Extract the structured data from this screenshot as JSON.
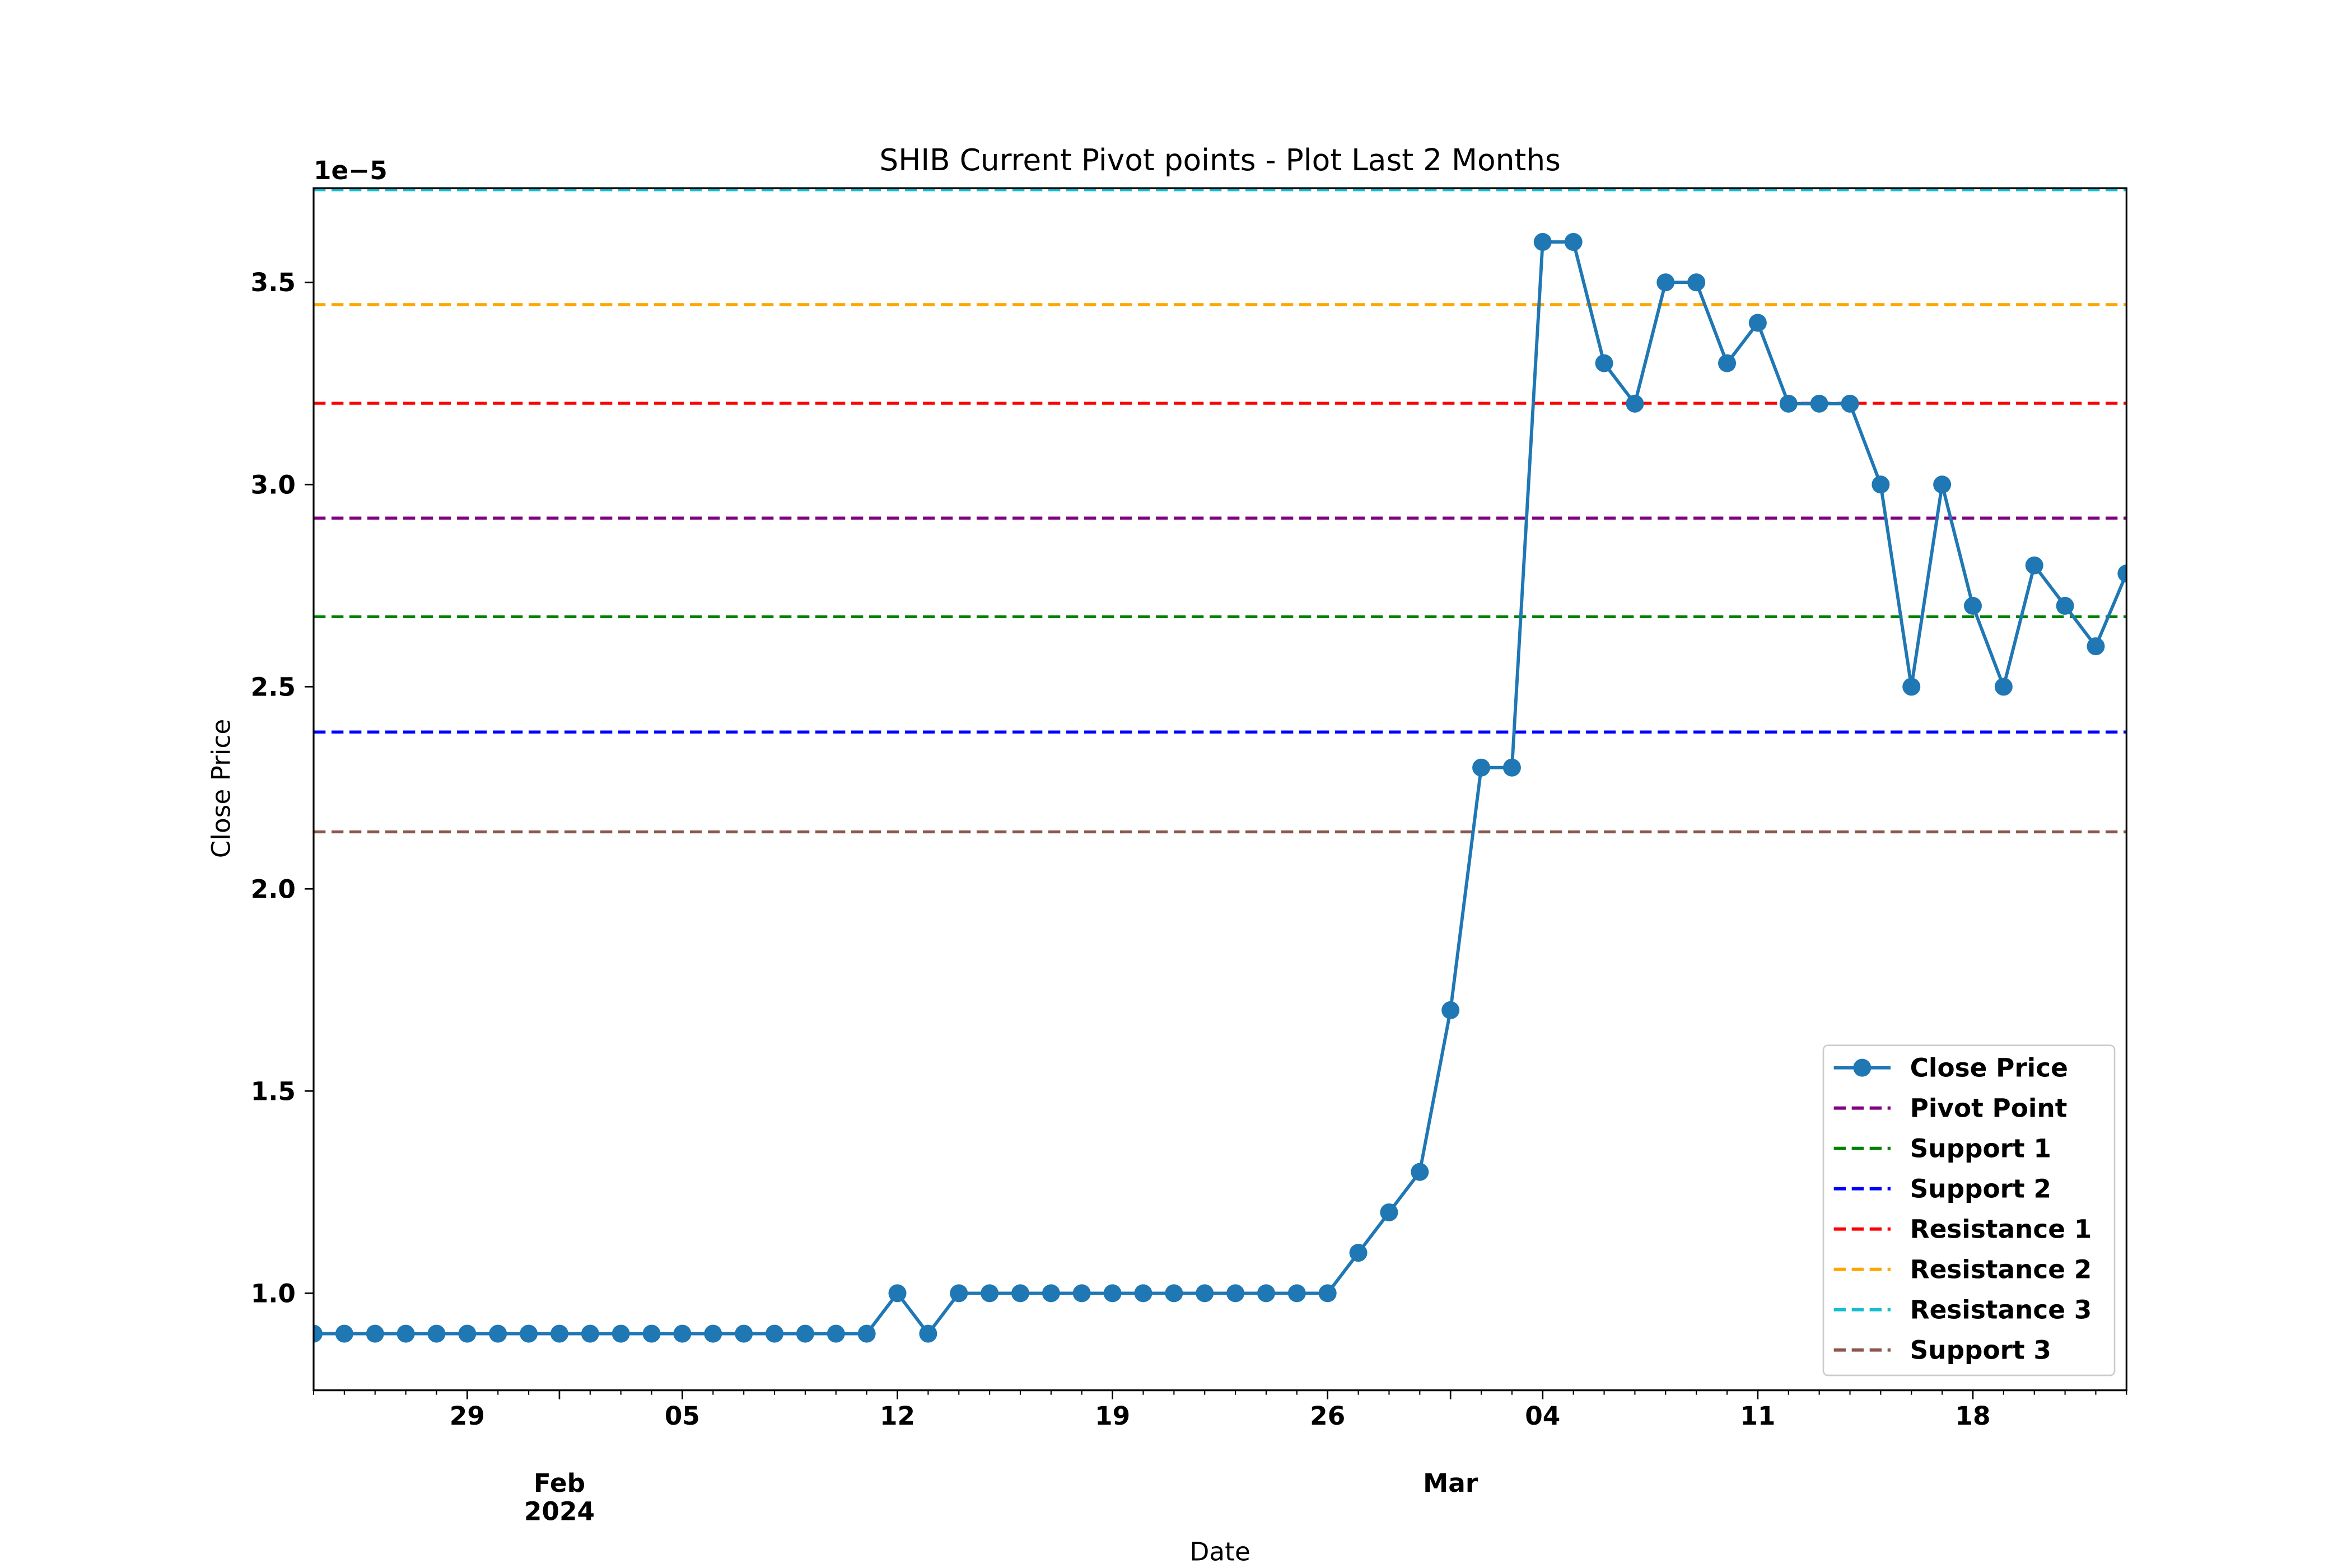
{
  "chart_data": {
    "type": "line",
    "title": "SHIB Current Pivot points - Plot Last 2 Months",
    "xlabel": "Date",
    "ylabel": "Close Price",
    "y_offset_label": "1e−5",
    "x": [
      "2024-01-24",
      "2024-01-25",
      "2024-01-26",
      "2024-01-27",
      "2024-01-28",
      "2024-01-29",
      "2024-01-30",
      "2024-01-31",
      "2024-02-01",
      "2024-02-02",
      "2024-02-03",
      "2024-02-04",
      "2024-02-05",
      "2024-02-06",
      "2024-02-07",
      "2024-02-08",
      "2024-02-09",
      "2024-02-10",
      "2024-02-11",
      "2024-02-12",
      "2024-02-13",
      "2024-02-14",
      "2024-02-15",
      "2024-02-16",
      "2024-02-17",
      "2024-02-18",
      "2024-02-19",
      "2024-02-20",
      "2024-02-21",
      "2024-02-22",
      "2024-02-23",
      "2024-02-24",
      "2024-02-25",
      "2024-02-26",
      "2024-02-27",
      "2024-02-28",
      "2024-02-29",
      "2024-03-01",
      "2024-03-02",
      "2024-03-03",
      "2024-03-04",
      "2024-03-05",
      "2024-03-06",
      "2024-03-07",
      "2024-03-08",
      "2024-03-09",
      "2024-03-10",
      "2024-03-11",
      "2024-03-12",
      "2024-03-13",
      "2024-03-14",
      "2024-03-15",
      "2024-03-16",
      "2024-03-17",
      "2024-03-18",
      "2024-03-19",
      "2024-03-20",
      "2024-03-21",
      "2024-03-22",
      "2024-03-23"
    ],
    "series": [
      {
        "name": "Close Price",
        "color": "#1f77b4",
        "values": [
          0.9,
          0.9,
          0.9,
          0.9,
          0.9,
          0.9,
          0.9,
          0.9,
          0.9,
          0.9,
          0.9,
          0.9,
          0.9,
          0.9,
          0.9,
          0.9,
          0.9,
          0.9,
          0.9,
          1.0,
          0.9,
          1.0,
          1.0,
          1.0,
          1.0,
          1.0,
          1.0,
          1.0,
          1.0,
          1.0,
          1.0,
          1.0,
          1.0,
          1.0,
          1.1,
          1.2,
          1.3,
          1.7,
          2.3,
          2.3,
          3.6,
          3.6,
          3.3,
          3.2,
          3.5,
          3.5,
          3.3,
          3.4,
          3.2,
          3.2,
          3.2,
          3.0,
          2.5,
          3.0,
          2.7,
          2.5,
          2.8,
          2.7,
          2.6,
          2.78
        ]
      }
    ],
    "hlines": [
      {
        "name": "Pivot Point",
        "value": 2.917,
        "color": "purple"
      },
      {
        "name": "Support 1",
        "value": 2.673,
        "color": "green"
      },
      {
        "name": "Support 2",
        "value": 2.388,
        "color": "blue"
      },
      {
        "name": "Resistance 1",
        "value": 3.201,
        "color": "red"
      },
      {
        "name": "Resistance 2",
        "value": 3.445,
        "color": "orange"
      },
      {
        "name": "Resistance 3",
        "value": 3.729,
        "color": "#17becf"
      },
      {
        "name": "Support 3",
        "value": 2.141,
        "color": "#8c564b"
      }
    ],
    "xlim": [
      "2024-01-24",
      "2024-03-23"
    ],
    "xticks": [
      {
        "value": "2024-01-29",
        "label": "29"
      },
      {
        "value": "2024-02-05",
        "label": "05"
      },
      {
        "value": "2024-02-12",
        "label": "12"
      },
      {
        "value": "2024-02-19",
        "label": "19"
      },
      {
        "value": "2024-02-26",
        "label": "26"
      },
      {
        "value": "2024-03-04",
        "label": "04"
      },
      {
        "value": "2024-03-11",
        "label": "11"
      },
      {
        "value": "2024-03-18",
        "label": "18"
      }
    ],
    "xticks_secondary": [
      {
        "value": "2024-02-01",
        "label": [
          "Feb",
          "2024"
        ]
      },
      {
        "value": "2024-03-01",
        "label": [
          "Mar"
        ]
      }
    ],
    "ylim": [
      0.76,
      3.733
    ],
    "yticks": [
      {
        "value": 1,
        "label": "1.0"
      },
      1.5,
      {
        "value": 2,
        "label": "2.0"
      },
      2.5,
      {
        "value": 3,
        "label": "3.0"
      },
      3.5
    ],
    "legend": "lower right"
  }
}
